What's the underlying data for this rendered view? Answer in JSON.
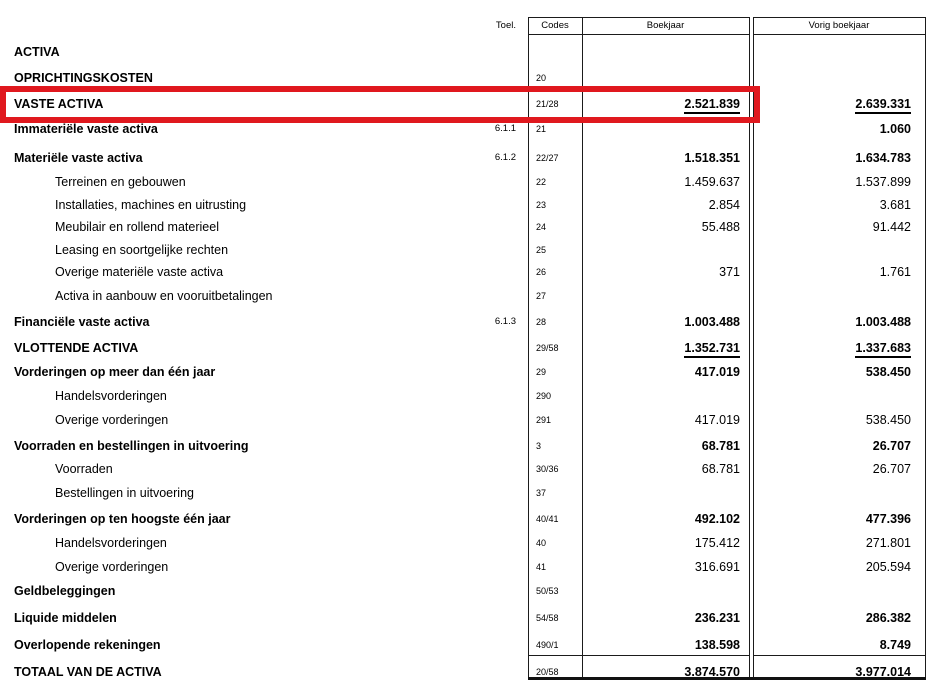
{
  "document": {
    "type": "balance-sheet",
    "language": "nl",
    "section": "ACTIVA"
  },
  "header": {
    "toel": "Toel.",
    "codes": "Codes",
    "boekjaar": "Boekjaar",
    "vorig_boekjaar": "Vorig boekjaar"
  },
  "highlight": {
    "color": "#e0181e",
    "highlighted_row": "VASTE ACTIVA"
  },
  "rows": [
    {
      "label": "ACTIVA",
      "toel": "",
      "code": "",
      "boekjaar": "",
      "vorig": "",
      "style": "section",
      "underline": false
    },
    {
      "label": "OPRICHTINGSKOSTEN",
      "toel": "",
      "code": "20",
      "boekjaar": "",
      "vorig": "",
      "style": "section",
      "underline": false
    },
    {
      "label": "VASTE ACTIVA",
      "toel": "",
      "code": "21/28",
      "boekjaar": "2.521.839",
      "vorig": "2.639.331",
      "style": "section",
      "underline": true
    },
    {
      "label": "Immateriële vaste activa",
      "toel": "6.1.1",
      "code": "21",
      "boekjaar": "",
      "vorig": "1.060",
      "style": "group",
      "underline": false
    },
    {
      "label": "Materiële vaste activa",
      "toel": "6.1.2",
      "code": "22/27",
      "boekjaar": "1.518.351",
      "vorig": "1.634.783",
      "style": "group",
      "underline": false
    },
    {
      "label": "Terreinen en gebouwen",
      "toel": "",
      "code": "22",
      "boekjaar": "1.459.637",
      "vorig": "1.537.899",
      "style": "item",
      "underline": false
    },
    {
      "label": "Installaties, machines en uitrusting",
      "toel": "",
      "code": "23",
      "boekjaar": "2.854",
      "vorig": "3.681",
      "style": "item",
      "underline": false
    },
    {
      "label": "Meubilair en rollend materieel",
      "toel": "",
      "code": "24",
      "boekjaar": "55.488",
      "vorig": "91.442",
      "style": "item",
      "underline": false
    },
    {
      "label": "Leasing en soortgelijke rechten",
      "toel": "",
      "code": "25",
      "boekjaar": "",
      "vorig": "",
      "style": "item",
      "underline": false
    },
    {
      "label": "Overige materiële vaste activa",
      "toel": "",
      "code": "26",
      "boekjaar": "371",
      "vorig": "1.761",
      "style": "item",
      "underline": false
    },
    {
      "label": "Activa in aanbouw en vooruitbetalingen",
      "toel": "",
      "code": "27",
      "boekjaar": "",
      "vorig": "",
      "style": "item",
      "underline": false
    },
    {
      "label": "Financiële vaste activa",
      "toel": "6.1.3",
      "code": "28",
      "boekjaar": "1.003.488",
      "vorig": "1.003.488",
      "style": "group",
      "underline": false
    },
    {
      "label": "VLOTTENDE ACTIVA",
      "toel": "",
      "code": "29/58",
      "boekjaar": "1.352.731",
      "vorig": "1.337.683",
      "style": "section",
      "underline": true
    },
    {
      "label": "Vorderingen op meer dan één jaar",
      "toel": "",
      "code": "29",
      "boekjaar": "417.019",
      "vorig": "538.450",
      "style": "group",
      "underline": false
    },
    {
      "label": "Handelsvorderingen",
      "toel": "",
      "code": "290",
      "boekjaar": "",
      "vorig": "",
      "style": "item",
      "underline": false
    },
    {
      "label": "Overige vorderingen",
      "toel": "",
      "code": "291",
      "boekjaar": "417.019",
      "vorig": "538.450",
      "style": "item",
      "underline": false
    },
    {
      "label": "Voorraden en bestellingen in uitvoering",
      "toel": "",
      "code": "3",
      "boekjaar": "68.781",
      "vorig": "26.707",
      "style": "group",
      "underline": false
    },
    {
      "label": "Voorraden",
      "toel": "",
      "code": "30/36",
      "boekjaar": "68.781",
      "vorig": "26.707",
      "style": "item",
      "underline": false
    },
    {
      "label": "Bestellingen in uitvoering",
      "toel": "",
      "code": "37",
      "boekjaar": "",
      "vorig": "",
      "style": "item",
      "underline": false
    },
    {
      "label": "Vorderingen op ten hoogste één jaar",
      "toel": "",
      "code": "40/41",
      "boekjaar": "492.102",
      "vorig": "477.396",
      "style": "group",
      "underline": false
    },
    {
      "label": "Handelsvorderingen",
      "toel": "",
      "code": "40",
      "boekjaar": "175.412",
      "vorig": "271.801",
      "style": "item",
      "underline": false
    },
    {
      "label": "Overige vorderingen",
      "toel": "",
      "code": "41",
      "boekjaar": "316.691",
      "vorig": "205.594",
      "style": "item",
      "underline": false
    },
    {
      "label": "Geldbeleggingen",
      "toel": "",
      "code": "50/53",
      "boekjaar": "",
      "vorig": "",
      "style": "group",
      "underline": false
    },
    {
      "label": "Liquide middelen",
      "toel": "",
      "code": "54/58",
      "boekjaar": "236.231",
      "vorig": "286.382",
      "style": "group",
      "underline": false
    },
    {
      "label": "Overlopende rekeningen",
      "toel": "",
      "code": "490/1",
      "boekjaar": "138.598",
      "vorig": "8.749",
      "style": "group",
      "underline": false
    },
    {
      "label": "TOTAAL VAN DE ACTIVA",
      "toel": "",
      "code": "20/58",
      "boekjaar": "3.874.570",
      "vorig": "3.977.014",
      "style": "section",
      "underline": false
    }
  ]
}
